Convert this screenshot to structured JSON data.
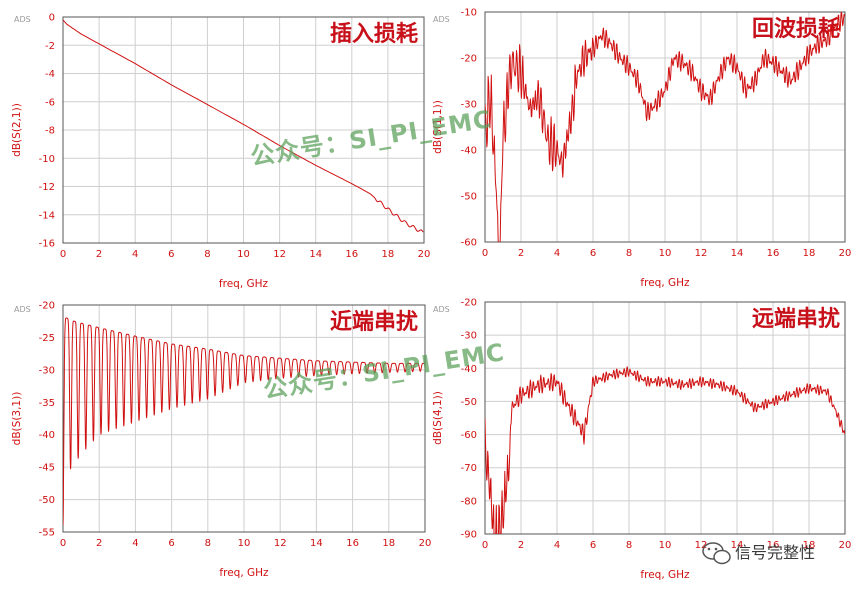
{
  "tool_tag": "ADS",
  "watermark_text": "公众号：SI_PI_EMC",
  "brand_label": "信号完整性",
  "brand_icon": "wechat-icon",
  "trace_color": "#d01010",
  "chart_data": [
    {
      "type": "line",
      "title": "插入损耗",
      "xlabel": "freq, GHz",
      "ylabel": "dB(S(2,1))",
      "xlim": [
        0,
        20
      ],
      "ylim": [
        -16,
        0
      ],
      "xticks": [
        0,
        2,
        4,
        6,
        8,
        10,
        12,
        14,
        16,
        18,
        20
      ],
      "yticks": [
        0,
        -2,
        -4,
        -6,
        -8,
        -10,
        -12,
        -14,
        -16
      ],
      "grid": true,
      "series": [
        {
          "x": [
            0,
            0.2,
            1,
            2,
            4,
            6,
            8,
            10,
            12,
            14,
            16,
            17,
            18,
            19,
            20
          ],
          "y": [
            -0.2,
            -0.5,
            -1.2,
            -1.9,
            -3.3,
            -4.8,
            -6.2,
            -7.6,
            -9.1,
            -10.5,
            -11.8,
            -12.5,
            -13.6,
            -14.6,
            -15.3
          ]
        }
      ]
    },
    {
      "type": "line",
      "title": "回波损耗",
      "xlabel": "freq, GHz",
      "ylabel": "dB(S(1,1))",
      "xlim": [
        0,
        20
      ],
      "ylim": [
        -60,
        -10
      ],
      "xticks": [
        0,
        2,
        4,
        6,
        8,
        10,
        12,
        14,
        16,
        18,
        20
      ],
      "yticks": [
        -10,
        -20,
        -30,
        -40,
        -50,
        -60
      ],
      "grid": true,
      "series": [
        {
          "x": [
            0,
            0.3,
            0.6,
            0.8,
            1.0,
            1.5,
            2.0,
            2.5,
            3.0,
            3.5,
            4.0,
            4.3,
            5.0,
            5.5,
            6.0,
            6.5,
            7.0,
            7.5,
            8.0,
            8.5,
            9.0,
            9.5,
            10.0,
            10.5,
            11.0,
            11.5,
            12.0,
            12.5,
            13.0,
            13.5,
            14.0,
            14.5,
            15.0,
            15.5,
            16.0,
            16.5,
            17.0,
            17.5,
            18.0,
            18.5,
            19.0,
            19.5,
            20.0
          ],
          "y": [
            -30,
            -22,
            -40,
            -59,
            -30,
            -18,
            -20,
            -28,
            -25,
            -35,
            -37,
            -40,
            -25,
            -20,
            -18,
            -15,
            -17,
            -20,
            -22,
            -25,
            -32,
            -30,
            -27,
            -20,
            -21,
            -23,
            -27,
            -29,
            -24,
            -20,
            -22,
            -27,
            -25,
            -20,
            -21,
            -23,
            -25,
            -22,
            -19,
            -17,
            -16,
            -13,
            -11
          ]
        }
      ]
    },
    {
      "type": "line",
      "title": "近端串扰",
      "xlabel": "freq, GHz",
      "ylabel": "dB(S(3,1))",
      "xlim": [
        0,
        20
      ],
      "ylim": [
        -55,
        -20
      ],
      "xticks": [
        0,
        2,
        4,
        6,
        8,
        10,
        12,
        14,
        16,
        18,
        20
      ],
      "yticks": [
        -20,
        -25,
        -30,
        -35,
        -40,
        -45,
        -50,
        -55
      ],
      "grid": true,
      "series": [
        {
          "x": [
            0,
            0.1,
            0.2,
            0.5,
            1,
            2,
            4,
            6,
            8,
            10,
            12,
            14,
            16,
            18,
            20
          ],
          "upper": [
            -22,
            -22,
            -22,
            -22.4,
            -22.8,
            -23.5,
            -24.8,
            -26,
            -26.8,
            -27.8,
            -28.2,
            -28.6,
            -28.8,
            -29,
            -29
          ],
          "lower": [
            -54,
            -47,
            -46,
            -45,
            -43,
            -40,
            -38,
            -36,
            -34.5,
            -32,
            -31.3,
            -30.9,
            -30.6,
            -30.4,
            -30.2
          ]
        }
      ]
    },
    {
      "type": "line",
      "title": "远端串扰",
      "xlabel": "freq, GHz",
      "ylabel": "dB(S(4,1))",
      "xlim": [
        0,
        20
      ],
      "ylim": [
        -90,
        -20
      ],
      "xticks": [
        0,
        2,
        4,
        6,
        8,
        10,
        12,
        14,
        16,
        18,
        20
      ],
      "yticks": [
        -20,
        -30,
        -40,
        -50,
        -60,
        -70,
        -80,
        -90
      ],
      "grid": true,
      "series": [
        {
          "x": [
            0,
            0.3,
            0.5,
            0.7,
            1.0,
            1.5,
            2,
            3,
            4,
            4.5,
            5,
            5.5,
            6,
            7,
            8,
            9,
            10,
            11,
            12,
            13,
            14,
            15,
            16,
            17,
            18,
            19,
            19.5,
            20
          ],
          "y": [
            -55,
            -68,
            -82,
            -83,
            -75,
            -52,
            -48,
            -45,
            -44,
            -50,
            -55,
            -60,
            -44,
            -42,
            -41,
            -44,
            -44,
            -45,
            -44,
            -45,
            -47,
            -52,
            -50,
            -48,
            -46,
            -47,
            -53,
            -60
          ]
        }
      ]
    }
  ]
}
